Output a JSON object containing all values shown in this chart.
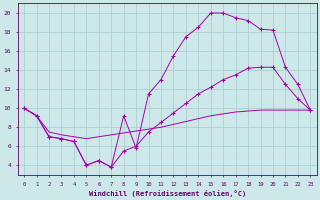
{
  "xlabel": "Windchill (Refroidissement éolien,°C)",
  "background_color": "#cce8e8",
  "grid_color": "#aac8cc",
  "line_color": "#aa00aa",
  "xlim": [
    -0.5,
    23.5
  ],
  "ylim": [
    3,
    21
  ],
  "yticks": [
    4,
    6,
    8,
    10,
    12,
    14,
    16,
    18,
    20
  ],
  "xticks": [
    0,
    1,
    2,
    3,
    4,
    5,
    6,
    7,
    8,
    9,
    10,
    11,
    12,
    13,
    14,
    15,
    16,
    17,
    18,
    19,
    20,
    21,
    22,
    23
  ],
  "line1_x": [
    0,
    1,
    2,
    3,
    4,
    5,
    6,
    7,
    8,
    9,
    10,
    11,
    12,
    13,
    14,
    15,
    16,
    17,
    18,
    19,
    20,
    21,
    22,
    23
  ],
  "line1_y": [
    10.0,
    9.2,
    7.0,
    6.8,
    6.5,
    4.0,
    4.5,
    3.8,
    9.2,
    5.8,
    11.5,
    13.0,
    15.5,
    17.5,
    18.5,
    20.0,
    20.0,
    19.5,
    19.2,
    18.3,
    18.2,
    14.3,
    12.5,
    9.8
  ],
  "line2_x": [
    0,
    1,
    2,
    3,
    4,
    5,
    6,
    7,
    8,
    9,
    10,
    11,
    12,
    13,
    14,
    15,
    16,
    17,
    18,
    19,
    20,
    21,
    22,
    23
  ],
  "line2_y": [
    10.0,
    9.2,
    7.0,
    6.8,
    6.5,
    4.0,
    4.5,
    3.8,
    5.5,
    6.0,
    7.5,
    8.5,
    9.5,
    10.5,
    11.5,
    12.2,
    13.0,
    13.5,
    14.2,
    14.3,
    14.3,
    12.5,
    11.0,
    9.8
  ],
  "line3_x": [
    0,
    1,
    2,
    3,
    4,
    5,
    6,
    7,
    8,
    9,
    10,
    11,
    12,
    13,
    14,
    15,
    16,
    17,
    18,
    19,
    20,
    21,
    22,
    23
  ],
  "line3_y": [
    10.0,
    9.2,
    7.5,
    7.2,
    7.0,
    6.8,
    7.0,
    7.2,
    7.4,
    7.6,
    7.8,
    8.0,
    8.3,
    8.6,
    8.9,
    9.2,
    9.4,
    9.6,
    9.7,
    9.8,
    9.8,
    9.8,
    9.8,
    9.8
  ]
}
